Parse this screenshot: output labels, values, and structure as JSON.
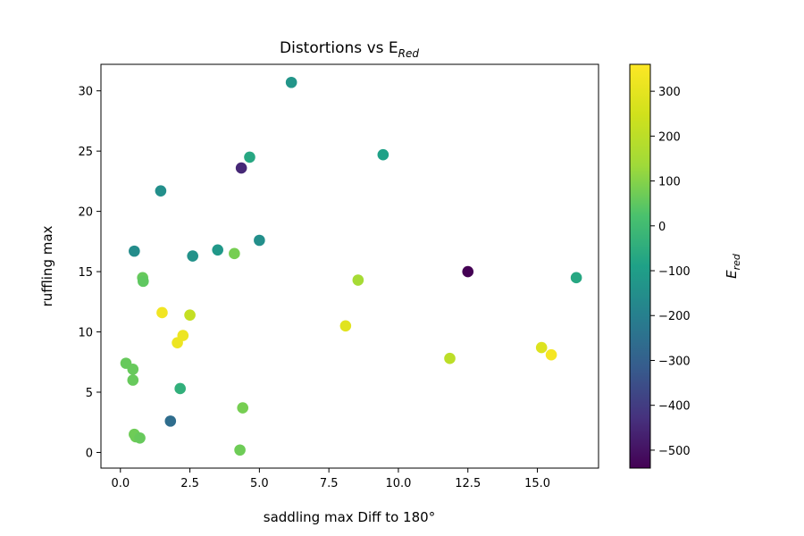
{
  "chart_data": {
    "type": "scatter",
    "title": "Distortions vs E",
    "title_subscript": "Red",
    "xlabel": "saddling max Diff to 180°",
    "ylabel": "ruffling max",
    "colorbar_label": "E",
    "colorbar_label_subscript": "red",
    "xlim": [
      -0.7,
      17.2
    ],
    "ylim": [
      -1.3,
      32.2
    ],
    "x_ticks": [
      0.0,
      2.5,
      5.0,
      7.5,
      10.0,
      12.5,
      15.0
    ],
    "x_tick_labels": [
      "0.0",
      "2.5",
      "5.0",
      "7.5",
      "10.0",
      "12.5",
      "15.0"
    ],
    "y_ticks": [
      0,
      5,
      10,
      15,
      20,
      25,
      30
    ],
    "y_tick_labels": [
      "0",
      "5",
      "10",
      "15",
      "20",
      "25",
      "30"
    ],
    "color_range": [
      -540,
      360
    ],
    "color_ticks": [
      300,
      200,
      100,
      0,
      -100,
      -200,
      -300,
      -400,
      -500
    ],
    "color_tick_labels": [
      "300",
      "200",
      "100",
      "0",
      "−100",
      "−200",
      "−300",
      "−400",
      "−500"
    ],
    "colormap": "viridis",
    "grid": false,
    "points": [
      {
        "x": 6.15,
        "y": 30.7,
        "c": -130
      },
      {
        "x": 9.45,
        "y": 24.7,
        "c": -90
      },
      {
        "x": 4.65,
        "y": 24.5,
        "c": -70
      },
      {
        "x": 4.35,
        "y": 23.6,
        "c": -450
      },
      {
        "x": 1.45,
        "y": 21.7,
        "c": -150
      },
      {
        "x": 5.0,
        "y": 17.6,
        "c": -150
      },
      {
        "x": 0.5,
        "y": 16.7,
        "c": -160
      },
      {
        "x": 3.5,
        "y": 16.8,
        "c": -120
      },
      {
        "x": 2.6,
        "y": 16.3,
        "c": -140
      },
      {
        "x": 4.1,
        "y": 16.5,
        "c": 80
      },
      {
        "x": 0.8,
        "y": 14.5,
        "c": 60
      },
      {
        "x": 0.82,
        "y": 14.2,
        "c": 50
      },
      {
        "x": 8.55,
        "y": 14.3,
        "c": 150
      },
      {
        "x": 12.5,
        "y": 15.0,
        "c": -540
      },
      {
        "x": 16.4,
        "y": 14.5,
        "c": -70
      },
      {
        "x": 1.5,
        "y": 11.6,
        "c": 330
      },
      {
        "x": 2.5,
        "y": 11.4,
        "c": 220
      },
      {
        "x": 8.1,
        "y": 10.5,
        "c": 290
      },
      {
        "x": 2.25,
        "y": 9.7,
        "c": 320
      },
      {
        "x": 2.05,
        "y": 9.1,
        "c": 320
      },
      {
        "x": 15.15,
        "y": 8.7,
        "c": 280
      },
      {
        "x": 15.5,
        "y": 8.1,
        "c": 340
      },
      {
        "x": 11.85,
        "y": 7.8,
        "c": 200
      },
      {
        "x": 0.2,
        "y": 7.4,
        "c": 60
      },
      {
        "x": 0.45,
        "y": 6.9,
        "c": 60
      },
      {
        "x": 0.45,
        "y": 6.0,
        "c": 60
      },
      {
        "x": 2.15,
        "y": 5.3,
        "c": -40
      },
      {
        "x": 4.4,
        "y": 3.7,
        "c": 80
      },
      {
        "x": 1.8,
        "y": 2.6,
        "c": -260
      },
      {
        "x": 0.5,
        "y": 1.5,
        "c": 70
      },
      {
        "x": 0.55,
        "y": 1.3,
        "c": 70
      },
      {
        "x": 0.7,
        "y": 1.2,
        "c": 60
      },
      {
        "x": 4.3,
        "y": 0.2,
        "c": 70
      }
    ]
  }
}
